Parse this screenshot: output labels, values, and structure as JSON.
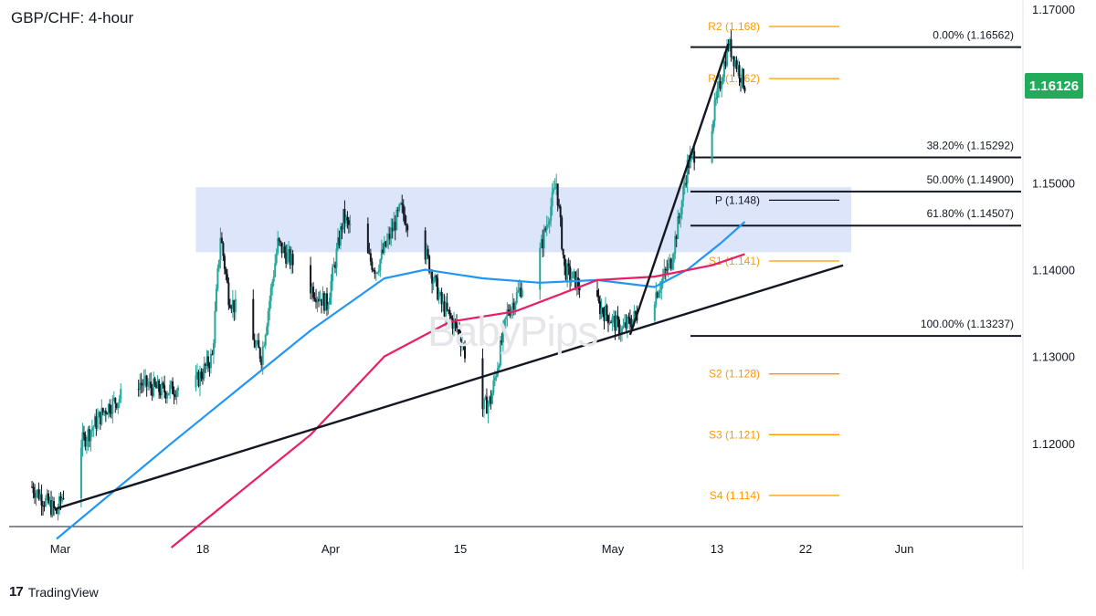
{
  "title": "GBP/CHF: 4-hour",
  "watermark": "BabyPips",
  "brand": {
    "logo_icon": "tradingview-logo-icon",
    "logo_glyph": "17",
    "name": "TradingView"
  },
  "last_price": "1.16126",
  "colors": {
    "up_candle": "#26a69a",
    "down_candle": "#131722",
    "ma_fast": "#2196f3",
    "ma_slow": "#e91e63",
    "pivot_lines": "#ff9800",
    "zone": "#dde5fb",
    "price_tag": "#22ab5a"
  },
  "chart_data": {
    "type": "candlestick",
    "symbol": "GBP/CHF",
    "timeframe": "4-hour",
    "x_ticks": [
      "Mar",
      "18",
      "Apr",
      "15",
      "May",
      "13",
      "22",
      "Jun"
    ],
    "y_ticks": [
      "1.17000",
      "1.15000",
      "1.14000",
      "1.13000",
      "1.12000"
    ],
    "y_range": [
      1.108,
      1.17
    ],
    "price_anchors": [
      [
        "2024-02-27",
        1.115
      ],
      [
        "2024-03-01",
        1.112
      ],
      [
        "2024-03-04",
        1.12
      ],
      [
        "2024-03-07",
        1.124
      ],
      [
        "2024-03-11",
        1.127
      ],
      [
        "2024-03-14",
        1.126
      ],
      [
        "2024-03-18",
        1.127
      ],
      [
        "2024-03-20",
        1.13
      ],
      [
        "2024-03-21",
        1.144
      ],
      [
        "2024-03-22",
        1.137
      ],
      [
        "2024-03-26",
        1.13
      ],
      [
        "2024-03-28",
        1.143
      ],
      [
        "2024-04-01",
        1.138
      ],
      [
        "2024-04-03",
        1.136
      ],
      [
        "2024-04-05",
        1.146
      ],
      [
        "2024-04-09",
        1.14
      ],
      [
        "2024-04-12",
        1.147
      ],
      [
        "2024-04-15",
        1.142
      ],
      [
        "2024-04-17",
        1.136
      ],
      [
        "2024-04-19",
        1.133
      ],
      [
        "2024-04-22",
        1.124
      ],
      [
        "2024-04-23",
        1.125
      ],
      [
        "2024-04-25",
        1.135
      ],
      [
        "2024-04-29",
        1.142
      ],
      [
        "2024-05-01",
        1.15
      ],
      [
        "2024-05-02",
        1.14
      ],
      [
        "2024-05-03",
        1.139
      ],
      [
        "2024-05-06",
        1.136
      ],
      [
        "2024-05-09",
        1.133
      ],
      [
        "2024-05-10",
        1.134
      ],
      [
        "2024-05-13",
        1.137
      ],
      [
        "2024-05-15",
        1.141
      ],
      [
        "2024-05-16",
        1.146
      ],
      [
        "2024-05-17",
        1.152
      ],
      [
        "2024-05-20",
        1.157
      ],
      [
        "2024-05-22",
        1.166
      ],
      [
        "2024-05-24",
        1.1613
      ]
    ],
    "moving_averages": [
      {
        "color": "#2196f3",
        "points": [
          [
            "2024-03-01",
            1.109
          ],
          [
            "2024-03-15",
            1.12
          ],
          [
            "2024-04-01",
            1.133
          ],
          [
            "2024-04-10",
            1.139
          ],
          [
            "2024-04-15",
            1.14
          ],
          [
            "2024-04-22",
            1.139
          ],
          [
            "2024-04-29",
            1.1385
          ],
          [
            "2024-05-06",
            1.1388
          ],
          [
            "2024-05-13",
            1.138
          ],
          [
            "2024-05-17",
            1.14
          ],
          [
            "2024-05-21",
            1.143
          ],
          [
            "2024-05-24",
            1.1455
          ]
        ]
      },
      {
        "color": "#e91e63",
        "points": [
          [
            "2024-03-15",
            1.108
          ],
          [
            "2024-04-01",
            1.121
          ],
          [
            "2024-04-10",
            1.13
          ],
          [
            "2024-04-18",
            1.134
          ],
          [
            "2024-04-26",
            1.1352
          ],
          [
            "2024-05-06",
            1.1388
          ],
          [
            "2024-05-13",
            1.1392
          ],
          [
            "2024-05-20",
            1.1405
          ],
          [
            "2024-05-24",
            1.1418
          ]
        ]
      }
    ],
    "fibonacci_levels": [
      {
        "label": "0.00% (1.16562)",
        "value": 1.16562
      },
      {
        "label": "38.20% (1.15292)",
        "value": 1.15292
      },
      {
        "label": "50.00% (1.14900)",
        "value": 1.149
      },
      {
        "label": "61.80% (1.14507)",
        "value": 1.14507
      },
      {
        "label": "100.00% (1.13237)",
        "value": 1.13237
      }
    ],
    "pivot_levels": [
      {
        "label": "R2 (1.168)",
        "value": 1.168,
        "color": "#ff9800"
      },
      {
        "label": "R1 (1.162)",
        "value": 1.162,
        "color": "#ff9800"
      },
      {
        "label": "P (1.148)",
        "value": 1.148,
        "color": "#131722"
      },
      {
        "label": "S1 (1.141)",
        "value": 1.141,
        "color": "#ff9800"
      },
      {
        "label": "S2 (1.128)",
        "value": 1.128,
        "color": "#ff9800"
      },
      {
        "label": "S3 (1.121)",
        "value": 1.121,
        "color": "#ff9800"
      },
      {
        "label": "S4 (1.114)",
        "value": 1.114,
        "color": "#ff9800"
      }
    ],
    "resistance_zone": {
      "from": "2024-03-18",
      "to": "2024-06-06",
      "low": 1.142,
      "high": 1.1495
    },
    "trendlines": [
      {
        "name": "ascending-support",
        "from": [
          "2024-03-01",
          1.1125
        ],
        "to": [
          "2024-06-05",
          1.1405
        ]
      },
      {
        "name": "rally-line",
        "from": [
          "2024-05-10",
          1.1325
        ],
        "to": [
          "2024-05-22",
          1.166
        ]
      }
    ],
    "grid": false,
    "last_price": 1.16126
  }
}
